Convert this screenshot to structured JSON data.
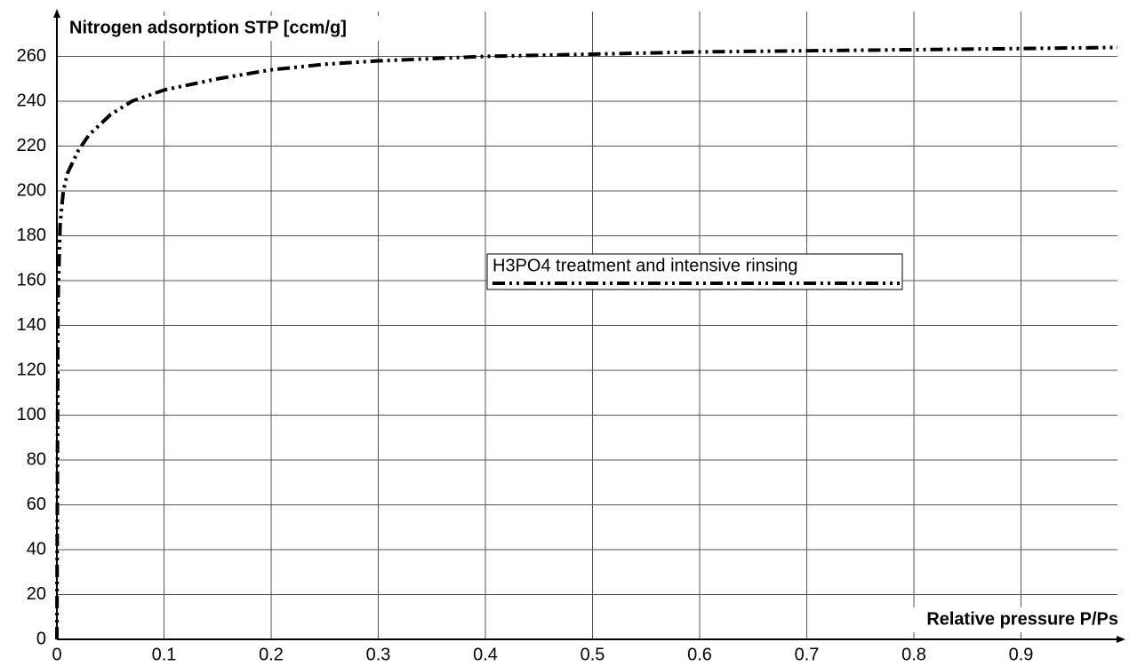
{
  "chart_data": {
    "type": "line",
    "y_label": "Nitrogen adsorption STP [ccm/g]",
    "x_label": "Relative pressure P/Ps",
    "x": [
      0,
      0.001,
      0.003,
      0.006,
      0.01,
      0.02,
      0.03,
      0.05,
      0.07,
      0.1,
      0.15,
      0.2,
      0.25,
      0.3,
      0.35,
      0.4,
      0.5,
      0.6,
      0.7,
      0.8,
      0.9,
      0.99
    ],
    "series": [
      {
        "name": "H3PO4 treatment and intensive rinsing",
        "color": "#000000",
        "values": [
          0,
          150,
          185,
          200,
          208,
          218,
          225,
          234,
          240,
          245,
          250,
          254,
          256.5,
          258,
          259,
          260,
          261,
          262,
          262.5,
          263,
          263.5,
          264
        ]
      }
    ],
    "xlim": [
      0,
      0.99
    ],
    "ylim": [
      0,
      280
    ],
    "xticks": [
      0,
      0.1,
      0.2,
      0.3,
      0.4,
      0.5,
      0.6,
      0.7,
      0.8,
      0.9
    ],
    "yticks": [
      0,
      20,
      40,
      60,
      80,
      100,
      120,
      140,
      160,
      180,
      200,
      220,
      240,
      260
    ],
    "grid": true
  }
}
